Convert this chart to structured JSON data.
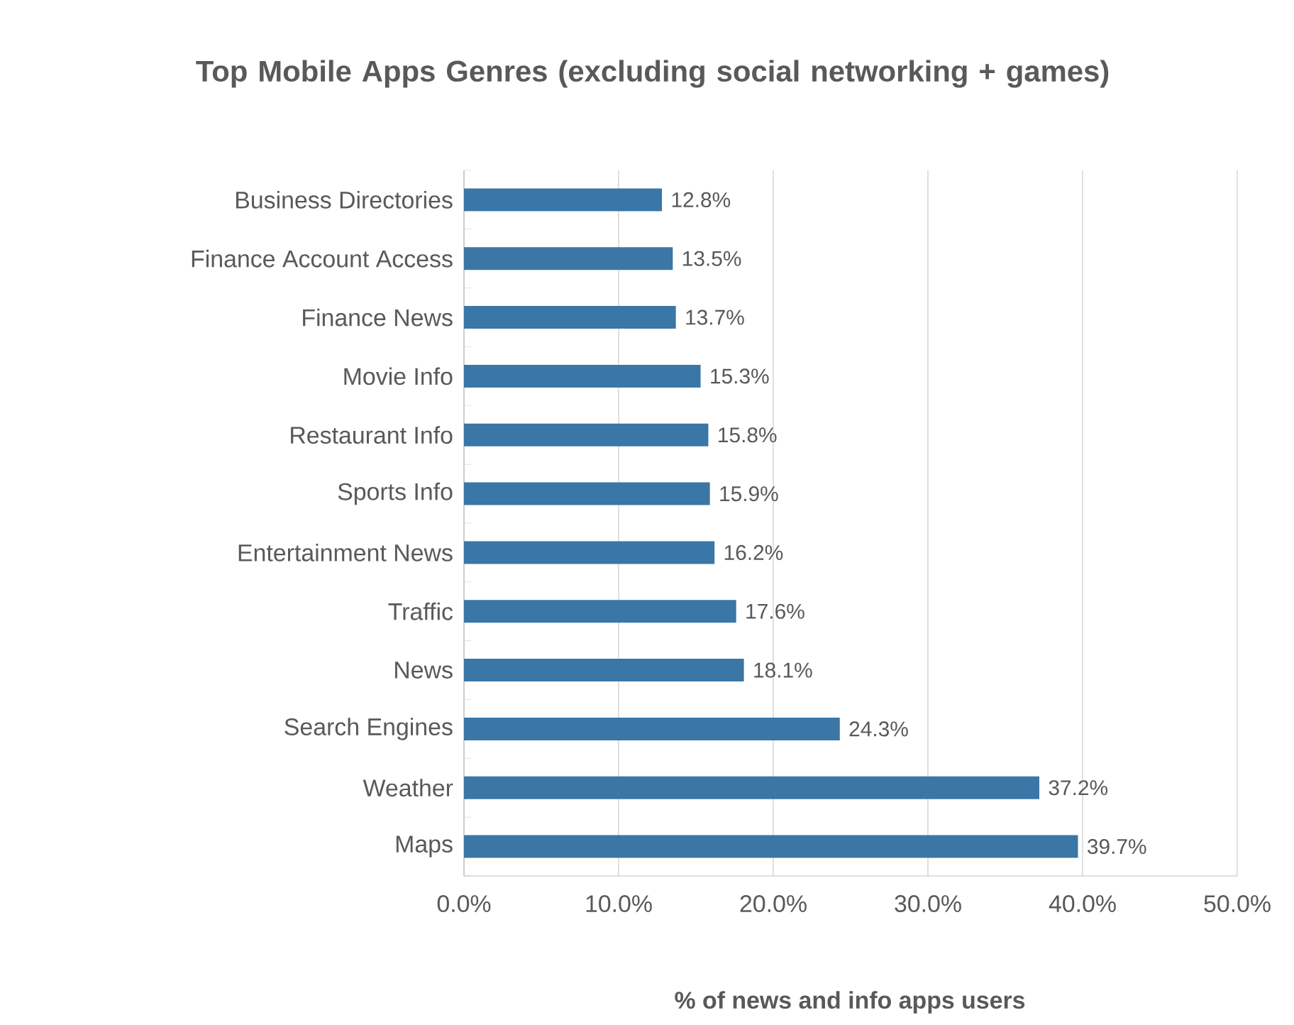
{
  "chart_data": {
    "type": "bar",
    "orientation": "horizontal",
    "title": "Top Mobile Apps Genres (excluding social networking + games)",
    "xlabel": "% of news and info apps users",
    "categories": [
      "Business Directories",
      "Finance Account Access",
      "Finance News",
      "Movie Info",
      "Restaurant Info",
      "Sports Info",
      "Entertainment News",
      "Traffic",
      "News",
      "Search Engines",
      "Weather",
      "Maps"
    ],
    "values": [
      12.8,
      13.5,
      13.7,
      15.3,
      15.8,
      15.9,
      16.2,
      17.6,
      18.1,
      24.3,
      37.2,
      39.7
    ],
    "value_labels": [
      "12.8%",
      "13.5%",
      "13.7%",
      "15.3%",
      "15.8%",
      "15.9%",
      "16.2%",
      "17.6%",
      "18.1%",
      "24.3%",
      "37.2%",
      "39.7%"
    ],
    "color": "#3a76a6",
    "xlim": [
      0,
      50
    ],
    "xticks": [
      {
        "value": 0,
        "label": "0.0%"
      },
      {
        "value": 10,
        "label": "10.0%"
      },
      {
        "value": 20,
        "label": "20.0%"
      },
      {
        "value": 30,
        "label": "30.0%"
      },
      {
        "value": 40,
        "label": "40.0%"
      },
      {
        "value": 50,
        "label": "50.0%"
      }
    ],
    "grid": "x"
  }
}
